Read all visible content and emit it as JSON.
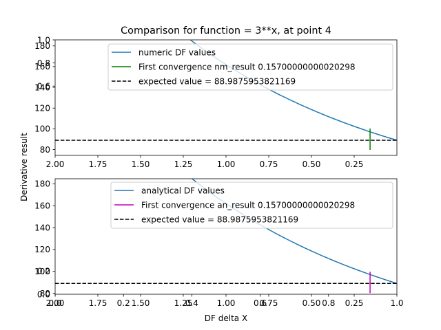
{
  "title": "Comparison for function = 3**x, at point 4",
  "ylabel": "Derivative result",
  "xlabel": "DF delta X",
  "overlay_ticks": {
    "top_y": [
      "0.6",
      "0.8",
      "1.0"
    ],
    "bottom_y": [
      "0.0",
      "0.2"
    ],
    "bottom_x": [
      "0.0",
      "0.2",
      "0.4",
      "0.6",
      "0.8",
      "1.0"
    ]
  },
  "chart_data": [
    {
      "type": "line",
      "panel": "top",
      "x_domain": [
        2.0,
        0.0
      ],
      "y_domain": [
        74.4,
        185.8
      ],
      "xticks": [
        2.0,
        1.75,
        1.5,
        1.25,
        1.0,
        0.75,
        0.5,
        0.25
      ],
      "xtick_labels": [
        "2.00",
        "1.75",
        "1.50",
        "1.25",
        "1.00",
        "0.75",
        "0.50",
        "0.25"
      ],
      "yticks": [
        80,
        100,
        120,
        140,
        160,
        180
      ],
      "series": [
        {
          "name": "numeric DF values",
          "color": "#1f77b4",
          "curve": "derivative_df",
          "x_range": [
            2.0,
            0.0
          ],
          "base": 3,
          "point": 4
        }
      ],
      "convergence": {
        "name": "First convergence nm_result 0.15700000000020298",
        "x": 0.157,
        "color": "#008000"
      },
      "expected": {
        "name": "expected value = 88.9875953821169",
        "y": 88.9875953821169,
        "color": "#000000"
      }
    },
    {
      "type": "line",
      "panel": "bottom",
      "x_domain": [
        2.0,
        0.0
      ],
      "y_domain": [
        79.1,
        184.6
      ],
      "xticks": [
        2.0,
        1.75,
        1.5,
        1.25,
        1.0,
        0.75,
        0.5,
        0.25
      ],
      "xtick_labels": [
        "2.00",
        "1.75",
        "1.50",
        "1.25",
        "1.00",
        "0.75",
        "0.50",
        "0.25"
      ],
      "yticks": [
        80,
        100,
        120,
        140,
        160,
        180
      ],
      "series": [
        {
          "name": "analytical DF values",
          "color": "#1f77b4",
          "curve": "derivative_df",
          "x_range": [
            2.0,
            0.0
          ],
          "base": 3,
          "point": 4
        }
      ],
      "convergence": {
        "name": "First convergence an_result 0.15700000000020298",
        "x": 0.157,
        "color": "#bf00bf"
      },
      "expected": {
        "name": "expected value = 88.9875953821169",
        "y": 88.9875953821169,
        "color": "#000000"
      }
    }
  ]
}
